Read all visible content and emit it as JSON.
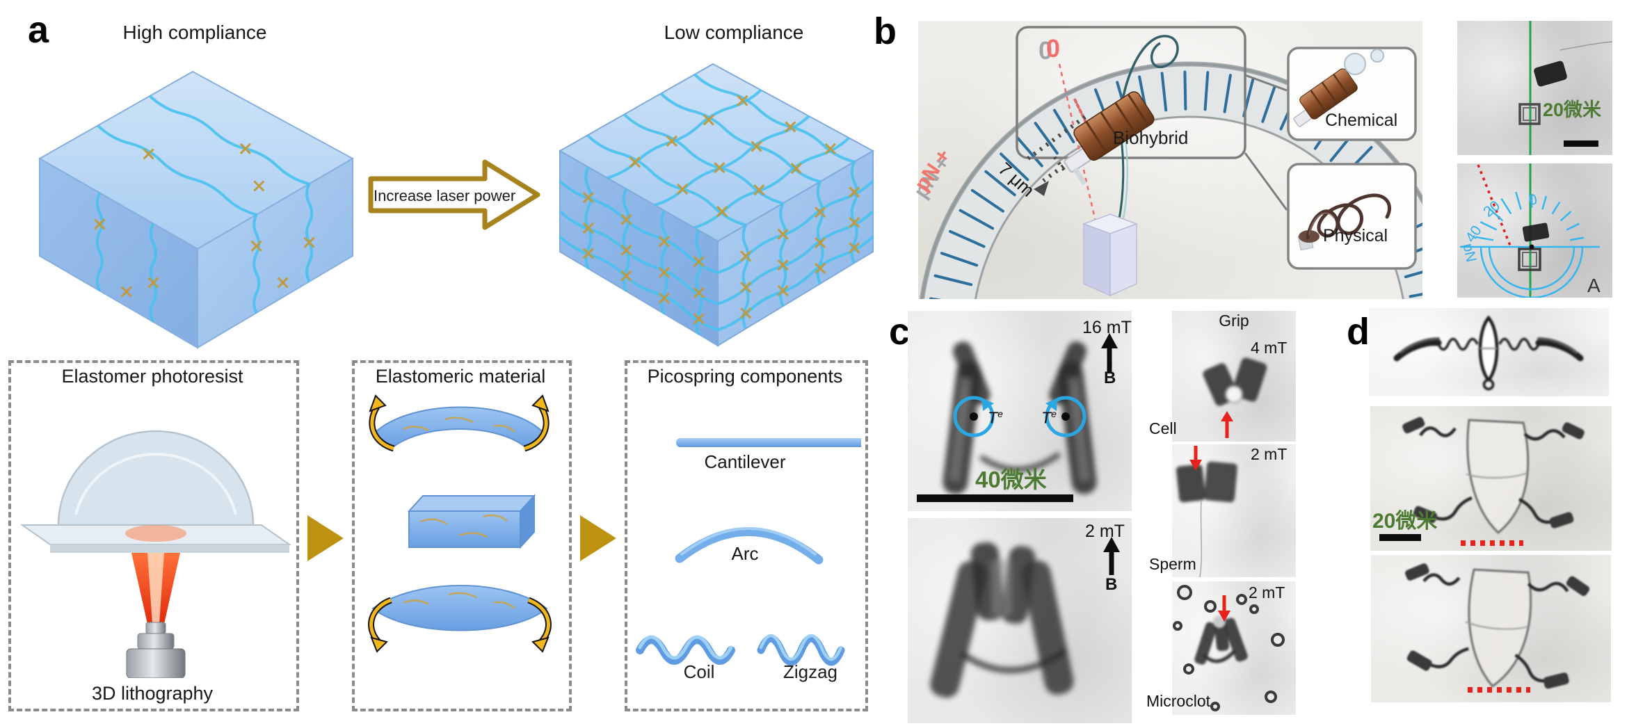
{
  "panel_a": {
    "label": "a",
    "cube_left_title": "High compliance",
    "cube_right_title": "Low compliance",
    "arrow_label": "Increase laser power",
    "box1_title": "Elastomer photoresist",
    "box1_caption": "3D lithography",
    "box2_title": "Elastomeric material",
    "box3_title": "Picospring components",
    "component_cantilever": "Cantilever",
    "component_arc": "Arc",
    "component_coil": "Coil",
    "component_zigzag": "Zigzag"
  },
  "panel_b": {
    "label": "b",
    "gauge_zero": "0",
    "gauge_axis": "pN +",
    "displacement": "7 μm",
    "biohybrid_label": "Biohybrid",
    "chemical_label": "Chemical",
    "physical_label": "Physical",
    "scale_bar": "20微米",
    "protractor_t0": "0",
    "protractor_t20": "20",
    "protractor_t40": "40",
    "protractor_unit": "pN",
    "frame_label": "A"
  },
  "panel_c": {
    "label": "c",
    "field_16mt": "16 mT",
    "field_2mt": "2 mT",
    "b_label": "B",
    "torque_t": "T",
    "torque_sup": "e",
    "scale_bar": "40微米",
    "grip_title": "Grip",
    "grip1_field": "4 mT",
    "grip1_label": "Cell",
    "grip2_field": "2 mT",
    "grip2_label": "Sperm",
    "grip3_field": "2 mT",
    "grip3_label": "Microclot"
  },
  "panel_d": {
    "label": "d",
    "scale_bar": "20微米"
  },
  "colors": {
    "scalebar_green": "#4e7b33",
    "protractor_cyan": "#35aee8",
    "tracking_green": "#22a24b",
    "annotation_red": "#e8211c",
    "gauge_pink": "#f0766e",
    "gold_arrow": "#bd9210",
    "component_blue": "#74aeea",
    "tick_blue": "#2d6e9b"
  }
}
